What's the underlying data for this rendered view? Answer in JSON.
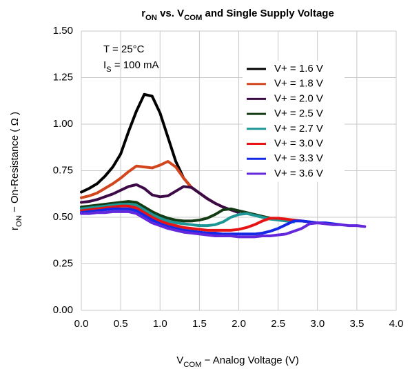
{
  "chart_data": {
    "type": "line",
    "title": [
      {
        "text": "r"
      },
      {
        "text": "ON",
        "sub": true
      },
      {
        "text": " vs. V"
      },
      {
        "text": "COM",
        "sub": true
      },
      {
        "text": " and Single Supply Voltage"
      }
    ],
    "x_label": [
      {
        "text": "V"
      },
      {
        "text": "COM",
        "sub": true
      },
      {
        "text": " − Analog Voltage (V)"
      }
    ],
    "y_label": [
      {
        "text": "r"
      },
      {
        "text": "ON",
        "sub": true
      },
      {
        "text": " − On-Resistance ( Ω )"
      }
    ],
    "annotations": [
      [
        {
          "text": "T = 25°C"
        }
      ],
      [
        {
          "text": "I"
        },
        {
          "text": "S",
          "sub": true
        },
        {
          "text": " = 100 mA"
        }
      ]
    ],
    "x": [
      0.0,
      0.1,
      0.2,
      0.3,
      0.4,
      0.5,
      0.6,
      0.7,
      0.8,
      0.9,
      1.0,
      1.1,
      1.2,
      1.3,
      1.4,
      1.5,
      1.6,
      1.7,
      1.8,
      1.9,
      2.0,
      2.1,
      2.2,
      2.3,
      2.4,
      2.5,
      2.6,
      2.7,
      2.8,
      2.9,
      3.0,
      3.1,
      3.2,
      3.3,
      3.4,
      3.5,
      3.6
    ],
    "series": [
      {
        "name": "V+ = 1.6 V",
        "color": "#000000",
        "values": [
          0.635,
          0.655,
          0.68,
          0.72,
          0.77,
          0.84,
          0.96,
          1.07,
          1.16,
          1.15,
          1.06,
          0.93,
          0.8,
          0.71,
          0.66,
          0.63,
          0.6,
          null,
          null,
          null,
          null,
          null,
          null,
          null,
          null,
          null,
          null,
          null,
          null,
          null,
          null,
          null,
          null,
          null,
          null,
          null,
          null
        ]
      },
      {
        "name": "V+ = 1.8 V",
        "color": "#d2461e",
        "values": [
          0.605,
          0.615,
          0.63,
          0.655,
          0.68,
          0.71,
          0.745,
          0.775,
          0.77,
          0.765,
          0.78,
          0.8,
          0.77,
          0.71,
          0.66,
          0.63,
          0.6,
          0.575,
          0.555,
          null,
          null,
          null,
          null,
          null,
          null,
          null,
          null,
          null,
          null,
          null,
          null,
          null,
          null,
          null,
          null,
          null,
          null
        ]
      },
      {
        "name": "V+ = 2.0 V",
        "color": "#3c0a46",
        "values": [
          0.58,
          0.585,
          0.595,
          0.61,
          0.625,
          0.645,
          0.665,
          0.675,
          0.655,
          0.62,
          0.61,
          0.615,
          0.64,
          0.665,
          0.66,
          0.63,
          0.6,
          0.575,
          0.555,
          0.54,
          0.525,
          null,
          null,
          null,
          null,
          null,
          null,
          null,
          null,
          null,
          null,
          null,
          null,
          null,
          null,
          null,
          null
        ]
      },
      {
        "name": "V+ = 2.5 V",
        "color": "#143c14",
        "values": [
          0.555,
          0.56,
          0.565,
          0.57,
          0.575,
          0.58,
          0.585,
          0.58,
          0.555,
          0.53,
          0.51,
          0.495,
          0.485,
          0.48,
          0.48,
          0.485,
          0.495,
          0.515,
          0.54,
          0.545,
          0.535,
          0.525,
          0.515,
          0.505,
          0.495,
          0.49,
          null,
          null,
          null,
          null,
          null,
          null,
          null,
          null,
          null,
          null,
          null
        ]
      },
      {
        "name": "V+ = 2.7 V",
        "color": "#1e9696",
        "values": [
          0.545,
          0.55,
          0.555,
          0.56,
          0.565,
          0.57,
          0.57,
          0.565,
          0.54,
          0.515,
          0.495,
          0.48,
          0.47,
          0.465,
          0.46,
          0.455,
          0.455,
          0.46,
          0.475,
          0.5,
          0.515,
          0.52,
          0.51,
          0.5,
          0.49,
          0.485,
          0.48,
          0.475,
          null,
          null,
          null,
          null,
          null,
          null,
          null,
          null,
          null
        ]
      },
      {
        "name": "V+ = 3.0 V",
        "color": "#e61414",
        "values": [
          0.535,
          0.54,
          0.545,
          0.55,
          0.555,
          0.56,
          0.56,
          0.55,
          0.525,
          0.5,
          0.48,
          0.465,
          0.455,
          0.445,
          0.44,
          0.435,
          0.43,
          0.43,
          0.43,
          0.43,
          0.435,
          0.445,
          0.46,
          0.48,
          0.495,
          0.495,
          0.49,
          0.485,
          0.48,
          0.475,
          0.47,
          null,
          null,
          null,
          null,
          null,
          null
        ]
      },
      {
        "name": "V+ = 3.3 V",
        "color": "#1428e6",
        "values": [
          0.525,
          0.53,
          0.535,
          0.54,
          0.545,
          0.545,
          0.545,
          0.535,
          0.51,
          0.485,
          0.465,
          0.45,
          0.44,
          0.43,
          0.425,
          0.42,
          0.415,
          0.415,
          0.41,
          0.41,
          0.41,
          0.41,
          0.41,
          0.415,
          0.425,
          0.44,
          0.46,
          0.48,
          0.48,
          0.475,
          0.47,
          0.47,
          0.465,
          0.46,
          null,
          null,
          null
        ]
      },
      {
        "name": "V+ = 3.6 V",
        "color": "#6428dc",
        "values": [
          0.52,
          0.52,
          0.525,
          0.525,
          0.53,
          0.53,
          0.53,
          0.52,
          0.495,
          0.47,
          0.455,
          0.44,
          0.43,
          0.42,
          0.415,
          0.41,
          0.405,
          0.4,
          0.4,
          0.4,
          0.395,
          0.395,
          0.395,
          0.4,
          0.4,
          0.405,
          0.41,
          0.425,
          0.44,
          0.465,
          0.47,
          0.465,
          0.46,
          0.46,
          0.455,
          0.455,
          0.45
        ]
      }
    ],
    "xlim": [
      0,
      4
    ],
    "xticks": [
      {
        "value": 0,
        "label": "0.0"
      },
      0.5,
      {
        "value": 1,
        "label": "1.0"
      },
      1.5,
      {
        "value": 2,
        "label": "2.0"
      },
      2.5,
      {
        "value": 3,
        "label": "3.0"
      },
      3.5,
      {
        "value": 4,
        "label": "4.0"
      }
    ],
    "ylim": [
      0,
      1.5
    ],
    "yticks": [
      {
        "value": 0,
        "label": "0.00"
      },
      0.25,
      {
        "value": 0.5,
        "label": "0.50"
      },
      0.75,
      {
        "value": 1,
        "label": "1.00"
      },
      1.25,
      {
        "value": 1.5,
        "label": "1.50"
      }
    ],
    "grid": true,
    "legend": "upper right"
  }
}
